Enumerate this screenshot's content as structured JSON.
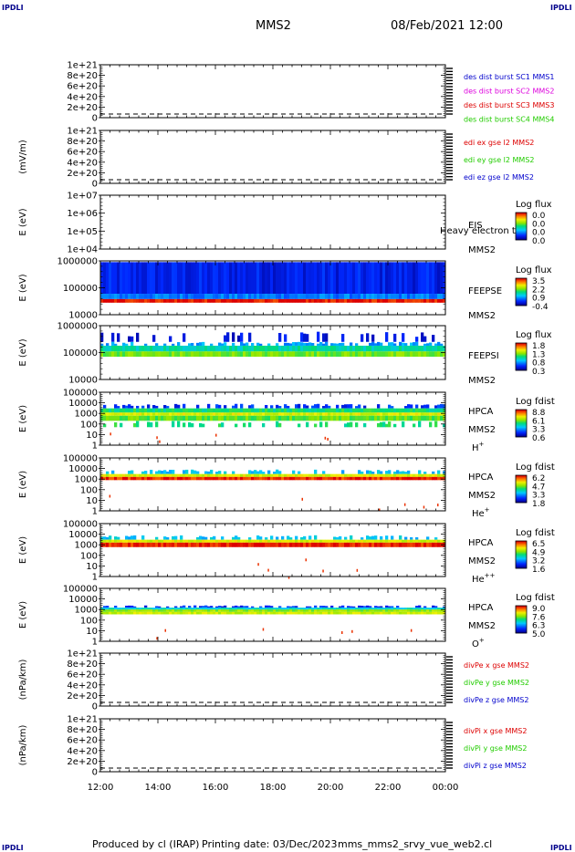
{
  "corner_marks": {
    "top_left": "IPDLI",
    "top_right": "IPDLI",
    "bottom_left": "IPDLI",
    "bottom_right": "IPDLI"
  },
  "header": {
    "spacecraft": "MMS2",
    "datetime": "08/Feb/2021 12:00"
  },
  "footer": {
    "producer": "Produced by cl (IRAP)",
    "printing_date": "Printing date: 03/Dec/2023",
    "filename": "mms_mms2_srvy_vue_web2.cl"
  },
  "x_axis": {
    "ticks": [
      "12:00",
      "14:00",
      "16:00",
      "18:00",
      "20:00",
      "22:00",
      "00:00"
    ]
  },
  "colors": {
    "red": "#dd0000",
    "magenta": "#dd00dd",
    "green": "#22cc00",
    "blue": "#0000cc"
  },
  "panels": [
    {
      "id": "des",
      "ylabel": "",
      "yticks": [
        "1e+21",
        "8e+20",
        "6e+20",
        "4e+20",
        "2e+20",
        "0"
      ],
      "legend": [
        {
          "text": "des dist burst SC1 MMS1",
          "color": "#0000cc"
        },
        {
          "text": "des dist burst SC2 MMS2",
          "color": "#dd00dd"
        },
        {
          "text": "des dist burst SC3 MMS3",
          "color": "#dd0000"
        },
        {
          "text": "des dist burst SC4 MMS4",
          "color": "#22cc00"
        }
      ]
    },
    {
      "id": "edi",
      "ylabel": "(mV/m)",
      "yticks": [
        "1e+21",
        "8e+20",
        "6e+20",
        "4e+20",
        "2e+20",
        "0"
      ],
      "legend": [
        {
          "text": "edi ex gse l2 MMS2",
          "color": "#dd0000"
        },
        {
          "text": "edi ey gse l2 MMS2",
          "color": "#22cc00"
        },
        {
          "text": "edi ez gse l2 MMS2",
          "color": "#0000cc"
        }
      ]
    },
    {
      "id": "eis",
      "ylabel": "E (eV)",
      "yticks": [
        "1e+07",
        "1e+06",
        "1e+05",
        "1e+04"
      ],
      "instrument": [
        "EIS",
        "MMS2"
      ],
      "overlay": "Heavy electron to",
      "colorbar": {
        "title": "Log flux",
        "labels": [
          "0.0",
          "0.0",
          "0.0",
          "0.0"
        ]
      }
    },
    {
      "id": "feepse",
      "ylabel": "E (eV)",
      "yticks": [
        "1000000",
        "100000",
        "10000"
      ],
      "instrument": [
        "FEEPSE",
        "MMS2"
      ],
      "colorbar": {
        "title": "Log flux",
        "labels": [
          "3.5",
          "2.2",
          "0.9",
          "-0.4"
        ]
      }
    },
    {
      "id": "feepsi",
      "ylabel": "E (eV)",
      "yticks": [
        "1000000",
        "100000",
        "10000"
      ],
      "instrument": [
        "FEEPSI",
        "MMS2"
      ],
      "colorbar": {
        "title": "Log flux",
        "labels": [
          "1.8",
          "1.3",
          "0.8",
          "0.3"
        ]
      }
    },
    {
      "id": "hpca_h",
      "ylabel": "E (eV)",
      "yticks": [
        "100000",
        "10000",
        "1000",
        "100",
        "10",
        "1"
      ],
      "instrument": [
        "HPCA",
        "MMS2"
      ],
      "species": "H",
      "species_sup": "+",
      "colorbar": {
        "title": "Log fdist",
        "labels": [
          "8.8",
          "6.1",
          "3.3",
          "0.6"
        ]
      }
    },
    {
      "id": "hpca_he",
      "ylabel": "E (eV)",
      "yticks": [
        "100000",
        "10000",
        "1000",
        "100",
        "10",
        "1"
      ],
      "instrument": [
        "HPCA",
        "MMS2"
      ],
      "species": "He",
      "species_sup": "+",
      "colorbar": {
        "title": "Log fdist",
        "labels": [
          "6.2",
          "4.7",
          "3.3",
          "1.8"
        ]
      }
    },
    {
      "id": "hpca_hepp",
      "ylabel": "E (eV)",
      "yticks": [
        "100000",
        "10000",
        "1000",
        "100",
        "10",
        "1"
      ],
      "instrument": [
        "HPCA",
        "MMS2"
      ],
      "species": "He",
      "species_sup": "++",
      "colorbar": {
        "title": "Log fdist",
        "labels": [
          "6.5",
          "4.9",
          "3.2",
          "1.6"
        ]
      }
    },
    {
      "id": "hpca_o",
      "ylabel": "E (eV)",
      "yticks": [
        "100000",
        "10000",
        "1000",
        "100",
        "10",
        "1"
      ],
      "instrument": [
        "HPCA",
        "MMS2"
      ],
      "species": "O",
      "species_sup": "+",
      "colorbar": {
        "title": "Log fdist",
        "labels": [
          "9.0",
          "7.6",
          "6.3",
          "5.0"
        ]
      }
    },
    {
      "id": "divpe",
      "ylabel": "(nPa/km)",
      "yticks": [
        "1e+21",
        "8e+20",
        "6e+20",
        "4e+20",
        "2e+20",
        "0"
      ],
      "legend": [
        {
          "text": "divPe x gse MMS2",
          "color": "#dd0000"
        },
        {
          "text": "divPe y gse MMS2",
          "color": "#22cc00"
        },
        {
          "text": "divPe z gse MMS2",
          "color": "#0000cc"
        }
      ]
    },
    {
      "id": "divpi",
      "ylabel": "(nPa/km)",
      "yticks": [
        "1e+21",
        "8e+20",
        "6e+20",
        "4e+20",
        "2e+20",
        "0"
      ],
      "legend": [
        {
          "text": "divPi x gse MMS2",
          "color": "#dd0000"
        },
        {
          "text": "divPi y gse MMS2",
          "color": "#22cc00"
        },
        {
          "text": "divPi z gse MMS2",
          "color": "#0000cc"
        }
      ]
    }
  ],
  "chart_data": {
    "type": "heatmap",
    "x": [
      "12:00",
      "14:00",
      "16:00",
      "18:00",
      "20:00",
      "22:00",
      "00:00"
    ],
    "panels": [
      {
        "id": "des",
        "type": "line",
        "ylim": [
          0,
          1e+21
        ],
        "series": []
      },
      {
        "id": "edi",
        "type": "line",
        "ylim": [
          0,
          1e+21
        ],
        "series": []
      },
      {
        "id": "eis",
        "type": "heatmap",
        "ylim_eV": [
          10000.0,
          10000000.0
        ],
        "log_y": true,
        "bands": []
      },
      {
        "id": "feepse",
        "type": "heatmap",
        "ylim_eV": [
          10000.0,
          1000000.0
        ],
        "log_y": true,
        "bands": [
          {
            "from_eV": 60000,
            "to_eV": 900000,
            "level": 0.12
          },
          {
            "from_eV": 38000,
            "to_eV": 60000,
            "level": 0.25
          },
          {
            "from_eV": 28000,
            "to_eV": 38000,
            "level": 0.98
          }
        ]
      },
      {
        "id": "feepsi",
        "type": "heatmap",
        "ylim_eV": [
          10000.0,
          1000000.0
        ],
        "log_y": true,
        "bands": [
          {
            "from_eV": 250000,
            "to_eV": 600000,
            "level": 0.1,
            "sparse": 0.3
          },
          {
            "from_eV": 180000,
            "to_eV": 250000,
            "level": 0.3,
            "sparse": 0.6
          },
          {
            "from_eV": 110000,
            "to_eV": 180000,
            "level": 0.45
          },
          {
            "from_eV": 70000,
            "to_eV": 110000,
            "level": 0.6
          }
        ]
      },
      {
        "id": "hpca_h",
        "type": "heatmap",
        "ylim_eV": [
          1,
          100000.0
        ],
        "log_y": true,
        "bands": [
          {
            "from_eV": 3000,
            "to_eV": 8000,
            "level": 0.15,
            "sparse": 0.5
          },
          {
            "from_eV": 1200,
            "to_eV": 3000,
            "level": 0.5
          },
          {
            "from_eV": 600,
            "to_eV": 1200,
            "level": 0.72
          },
          {
            "from_eV": 200,
            "to_eV": 600,
            "level": 0.58
          },
          {
            "from_eV": 50,
            "to_eV": 200,
            "level": 0.5,
            "sparse": 0.35
          }
        ]
      },
      {
        "id": "hpca_he",
        "type": "heatmap",
        "ylim_eV": [
          1,
          100000.0
        ],
        "log_y": true,
        "bands": [
          {
            "from_eV": 3000,
            "to_eV": 8000,
            "level": 0.35,
            "sparse": 0.5
          },
          {
            "from_eV": 1600,
            "to_eV": 3000,
            "level": 0.72
          },
          {
            "from_eV": 800,
            "to_eV": 1600,
            "level": 0.95
          }
        ]
      },
      {
        "id": "hpca_hepp",
        "type": "heatmap",
        "ylim_eV": [
          1,
          100000.0
        ],
        "log_y": true,
        "bands": [
          {
            "from_eV": 3000,
            "to_eV": 8000,
            "level": 0.35,
            "sparse": 0.5
          },
          {
            "from_eV": 1600,
            "to_eV": 3000,
            "level": 0.72
          },
          {
            "from_eV": 600,
            "to_eV": 1600,
            "level": 0.97
          }
        ]
      },
      {
        "id": "hpca_o",
        "type": "heatmap",
        "ylim_eV": [
          1,
          100000.0
        ],
        "log_y": true,
        "bands": [
          {
            "from_eV": 1500,
            "to_eV": 2500,
            "level": 0.15,
            "sparse": 0.5
          },
          {
            "from_eV": 1000,
            "to_eV": 1500,
            "level": 0.4
          },
          {
            "from_eV": 600,
            "to_eV": 1000,
            "level": 0.62
          },
          {
            "from_eV": 350,
            "to_eV": 600,
            "level": 0.7
          }
        ]
      },
      {
        "id": "divpe",
        "type": "line",
        "ylim": [
          0,
          1e+21
        ],
        "series": []
      },
      {
        "id": "divpi",
        "type": "line",
        "ylim": [
          0,
          1e+21
        ],
        "series": []
      }
    ]
  }
}
